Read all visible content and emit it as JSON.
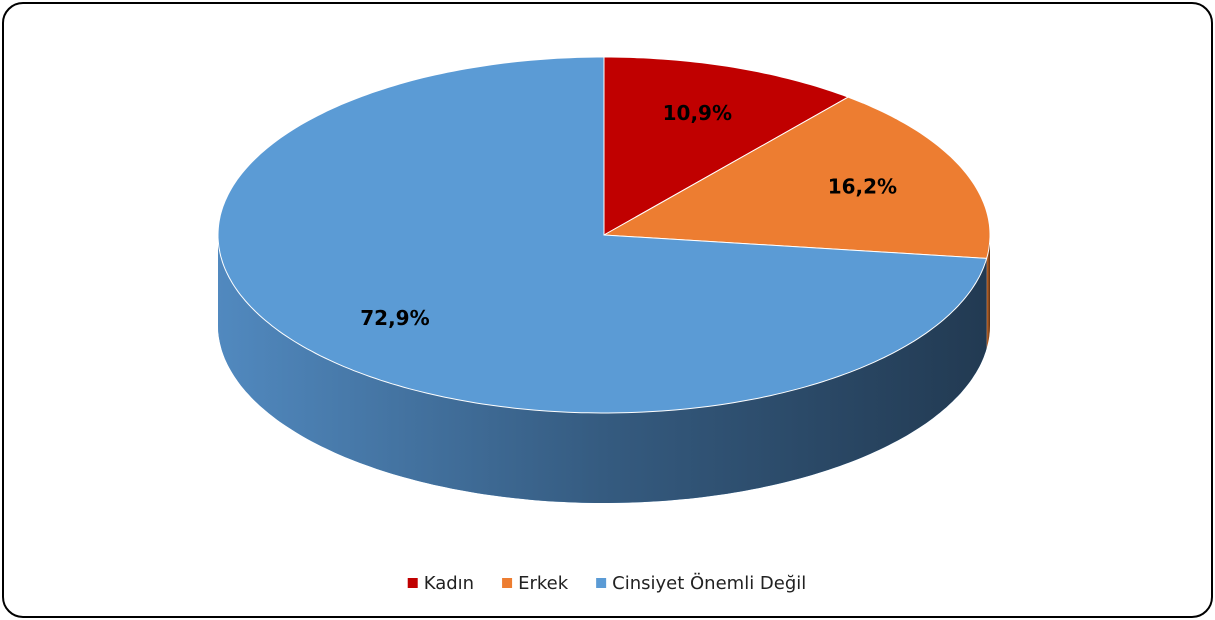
{
  "chart_data": {
    "type": "pie",
    "categories": [
      "Kadın",
      "Erkek",
      "Cinsiyet Önemli Değil"
    ],
    "values": [
      10.9,
      16.2,
      72.9
    ],
    "value_labels": [
      "10,9%",
      "16,2%",
      "72,9%"
    ],
    "colors": [
      "#c00000",
      "#ed7d31",
      "#5b9bd5"
    ],
    "legend": "bottom"
  }
}
